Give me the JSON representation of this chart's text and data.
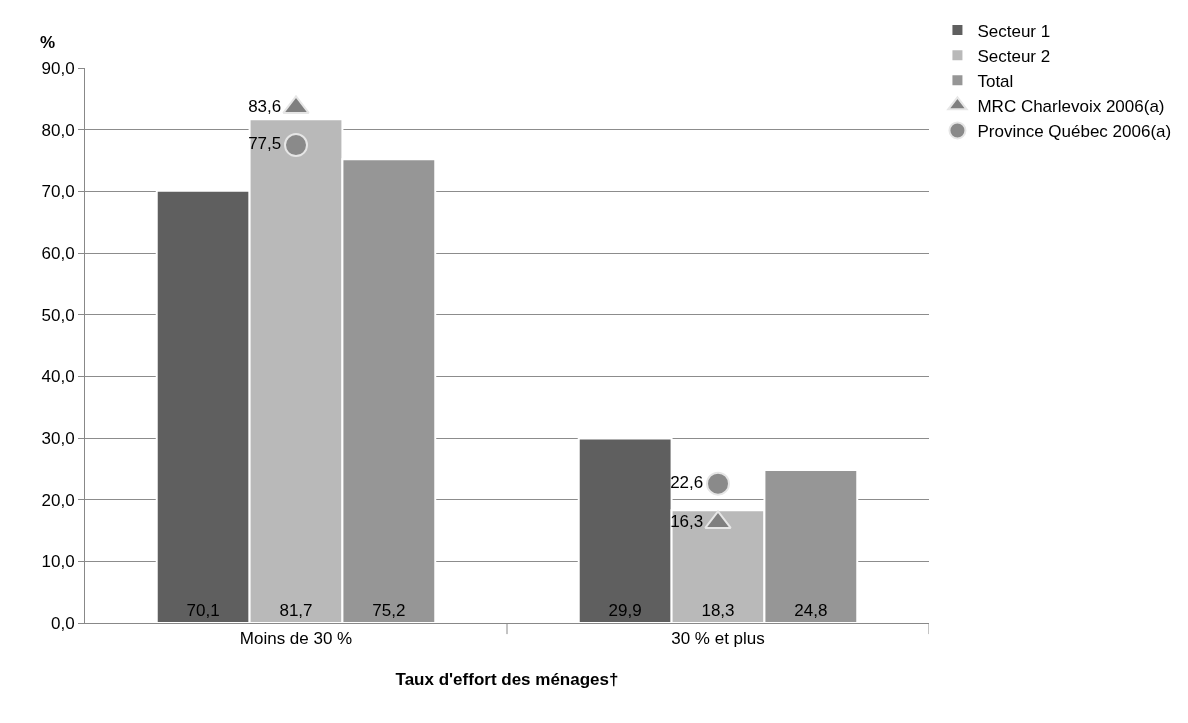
{
  "chart_data": {
    "type": "bar",
    "xlabel": "Taux d'effort des ménages†",
    "ylabel": "%",
    "categories": [
      "Moins de 30 %",
      "30 % et plus"
    ],
    "series": [
      {
        "name": "Secteur 1",
        "color": "#5f5f5f",
        "values": [
          70.1,
          29.9
        ],
        "value_labels": [
          "70,1",
          "29,9"
        ]
      },
      {
        "name": "Secteur 2",
        "color": "#b9b9b9",
        "values": [
          81.7,
          18.3
        ],
        "value_labels": [
          "81,7",
          "18,3"
        ]
      },
      {
        "name": "Total",
        "color": "#969696",
        "values": [
          75.2,
          24.8
        ],
        "value_labels": [
          "75,2",
          "24,8"
        ]
      },
      {
        "name": "MRC Charlevoix 2006(a)",
        "type": "scatter",
        "marker": "triangle",
        "color": "#7f7f7f",
        "x": [
          "Moins de 30 %",
          "30 % et plus"
        ],
        "values": [
          83.6,
          16.3
        ],
        "value_labels": [
          "83,6",
          "16,3"
        ]
      },
      {
        "name": "Province Québec 2006(a)",
        "type": "scatter",
        "marker": "circle",
        "color": "#8a8a8a",
        "x": [
          "Moins de 30 %",
          "30 % et plus"
        ],
        "values": [
          77.5,
          22.6
        ],
        "value_labels": [
          "77,5",
          "22,6"
        ]
      }
    ],
    "ylim": [
      0,
      90
    ],
    "yticks": [
      {
        "value": 0,
        "label": "0,0"
      },
      {
        "value": 10,
        "label": "10,0"
      },
      {
        "value": 20,
        "label": "20,0"
      },
      {
        "value": 30,
        "label": "30,0"
      },
      {
        "value": 40,
        "label": "40,0"
      },
      {
        "value": 50,
        "label": "50,0"
      },
      {
        "value": 60,
        "label": "60,0"
      },
      {
        "value": 70,
        "label": "70,0"
      },
      {
        "value": 80,
        "label": "80,0"
      },
      {
        "value": 90,
        "label": "90,0"
      }
    ],
    "grid": "y",
    "legend": "top right"
  }
}
